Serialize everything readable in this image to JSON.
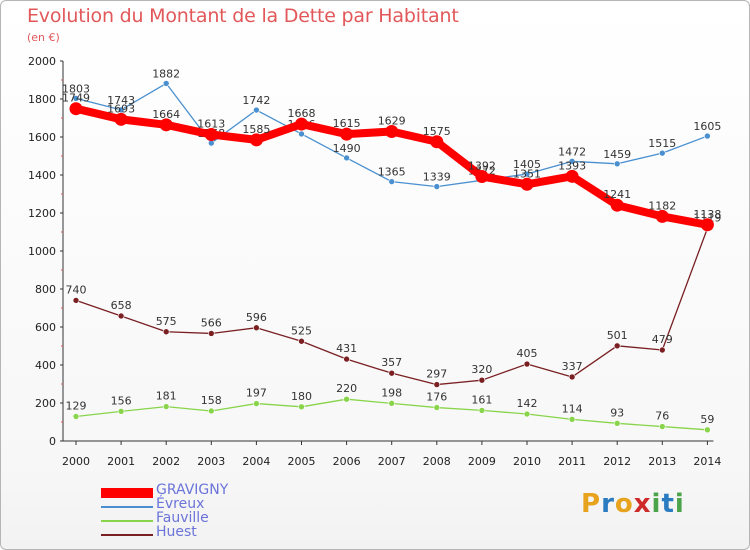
{
  "chart_data": {
    "type": "line",
    "title": "Evolution du Montant de la Dette par Habitant",
    "subtitle": "(en €)",
    "x": [
      "2000",
      "2001",
      "2002",
      "2003",
      "2004",
      "2005",
      "2006",
      "2007",
      "2008",
      "2009",
      "2010",
      "2011",
      "2012",
      "2013",
      "2014"
    ],
    "ylim": [
      0,
      2000
    ],
    "yticks": [
      0,
      200,
      400,
      600,
      800,
      1000,
      1200,
      1400,
      1600,
      1800,
      2000
    ],
    "grid": false,
    "legend_position": "bottom-left",
    "series": [
      {
        "name": "GRAVIGNY",
        "color": "#ff0000",
        "values": [
          1749,
          1693,
          1664,
          1613,
          1585,
          1668,
          1615,
          1629,
          1575,
          1392,
          1351,
          1393,
          1241,
          1182,
          1138
        ]
      },
      {
        "name": "Évreux",
        "color": "#4a90d0",
        "values": [
          1803,
          1743,
          1882,
          1568,
          1742,
          1616,
          1490,
          1365,
          1339,
          1372,
          1405,
          1472,
          1459,
          1515,
          1605
        ]
      },
      {
        "name": "Fauville",
        "color": "#88d44a",
        "values": [
          129,
          156,
          181,
          158,
          197,
          180,
          220,
          198,
          176,
          161,
          142,
          114,
          93,
          76,
          59
        ]
      },
      {
        "name": "Huest",
        "color": "#7a1f22",
        "values": [
          740,
          658,
          575,
          566,
          596,
          525,
          431,
          357,
          297,
          320,
          405,
          337,
          501,
          479,
          1119
        ]
      }
    ]
  },
  "brand": {
    "name": "Proxiti",
    "letters": [
      "P",
      "r",
      "o",
      "x",
      "i",
      "t",
      "i"
    ],
    "colors": [
      "#e8a31e",
      "#2b7bc1",
      "#e8a31e",
      "#cf2a2a",
      "#4ba34a",
      "#2b7bc1",
      "#4ba34a"
    ]
  }
}
